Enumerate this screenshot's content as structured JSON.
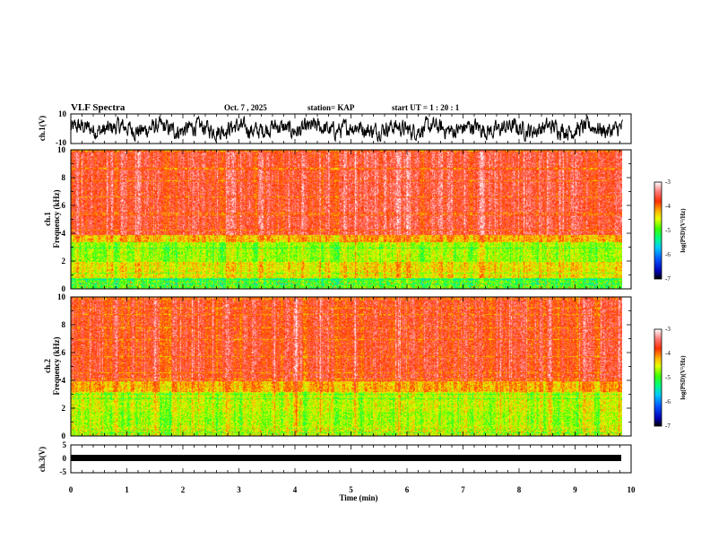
{
  "header": {
    "title": "VLF Spectra",
    "date": "Oct. 7 , 2025",
    "station": "station= KAP",
    "start": "start  UT =   1 : 20 : 1"
  },
  "chart_data": [
    {
      "type": "line",
      "name": "ch1-waveform",
      "ylabel": "ch.1(V)",
      "ylim": [
        -10,
        10
      ],
      "yticks": [
        "10",
        "-10"
      ],
      "xlim": [
        0,
        10
      ],
      "data_end_min": 9.85,
      "series_description": "noisy waveform fluctuating mostly between about -8 V and +8 V"
    },
    {
      "type": "heatmap",
      "name": "ch1-spectrogram",
      "ylabel": "ch.1\nFrequency (kHz)",
      "ylim": [
        0,
        10
      ],
      "yticks": [
        "0",
        "2",
        "4",
        "6",
        "8",
        "10"
      ],
      "xlim": [
        0,
        10
      ],
      "colorbar": {
        "label": "log(PSD)(V²/Hz)",
        "range": [
          -7,
          -3
        ],
        "ticks": [
          "-3",
          "-4",
          "-5",
          "-6",
          "-7"
        ]
      },
      "band_levels": [
        {
          "fmin": 0,
          "fmax": 0.8,
          "level": -5.0
        },
        {
          "fmin": 0.8,
          "fmax": 2.0,
          "level": -4.4
        },
        {
          "fmin": 2.0,
          "fmax": 3.4,
          "level": -4.7
        },
        {
          "fmin": 3.4,
          "fmax": 3.9,
          "level": -4.2
        },
        {
          "fmin": 3.9,
          "fmax": 10,
          "level": -3.6
        }
      ]
    },
    {
      "type": "heatmap",
      "name": "ch2-spectrogram",
      "ylabel": "ch.2\nFrequency (kHz)",
      "ylim": [
        0,
        10
      ],
      "yticks": [
        "0",
        "2",
        "4",
        "6",
        "8",
        "10"
      ],
      "xlim": [
        0,
        10
      ],
      "colorbar": {
        "label": "log(PSD)(V²/Hz)",
        "range": [
          -7,
          -3
        ],
        "ticks": [
          "-3",
          "-4",
          "-5",
          "-6",
          "-7"
        ]
      },
      "band_levels": [
        {
          "fmin": 0,
          "fmax": 0.8,
          "level": -4.6
        },
        {
          "fmin": 0.8,
          "fmax": 1.8,
          "level": -4.7
        },
        {
          "fmin": 1.8,
          "fmax": 3.2,
          "level": -4.6
        },
        {
          "fmin": 3.2,
          "fmax": 4.0,
          "level": -4.2
        },
        {
          "fmin": 4.0,
          "fmax": 10,
          "level": -3.7
        }
      ]
    },
    {
      "type": "line",
      "name": "ch3-waveform",
      "ylabel": "ch.3(V)",
      "ylim": [
        -5,
        5
      ],
      "yticks": [
        "5",
        "0",
        "-5"
      ],
      "xlim": [
        0,
        10
      ],
      "data_end_min": 9.85,
      "series_description": "nearly constant dense band around -1 V"
    }
  ],
  "xaxis": {
    "label": "Time  (min)",
    "ticks": [
      "0",
      "1",
      "2",
      "3",
      "4",
      "5",
      "6",
      "7",
      "8",
      "9",
      "10"
    ]
  }
}
